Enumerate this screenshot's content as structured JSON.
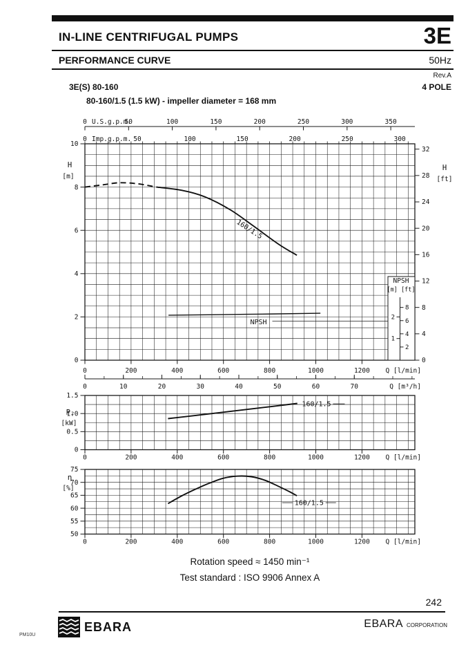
{
  "header": {
    "product_line": "IN-LINE CENTRIFUGAL PUMPS",
    "series": "3E",
    "doc_type": "PERFORMANCE CURVE",
    "frequency": "50Hz",
    "revision": "Rev.A",
    "model": "3E(S) 80-160",
    "poles": "4 POLE",
    "spec": "80-160/1.5 (1.5 kW) - impeller diameter = 168 mm"
  },
  "chart_data": {
    "type": "line",
    "flow_axis": {
      "unit_lmin": {
        "label": "Q [l/min]",
        "ticks": [
          0,
          200,
          400,
          600,
          800,
          1000,
          1200
        ],
        "minor_step": 50,
        "max": 1430
      },
      "unit_m3h": {
        "label": "Q [m³/h]",
        "ticks": [
          0,
          10,
          20,
          30,
          40,
          50,
          60,
          70
        ],
        "minor_step": 5,
        "lmin_per_unit": 16.667
      },
      "unit_usgpm": {
        "label": "U.S.g.p.m.",
        "ticks": [
          0,
          50,
          100,
          150,
          200,
          250,
          300,
          350
        ],
        "lmin_per_unit": 3.785
      },
      "unit_impgpm": {
        "label": "Imp.g.p.m.",
        "ticks": [
          0,
          50,
          100,
          150,
          200,
          250,
          300
        ],
        "lmin_per_unit": 4.546
      }
    },
    "head_chart": {
      "y_left": {
        "name": "H",
        "unit": "[m]",
        "ticks": [
          0,
          2,
          4,
          6,
          8,
          10
        ],
        "minor_step": 0.5,
        "range": [
          0,
          10
        ]
      },
      "y_right": {
        "name": "H",
        "unit": "[ft]",
        "ticks": [
          0,
          4,
          8,
          12,
          16,
          20,
          24,
          28,
          32
        ],
        "ft_per_m": 3.2808
      },
      "curve": {
        "label": "160/1.5",
        "dashed_points": [
          [
            0,
            8.0
          ],
          [
            75,
            8.1
          ],
          [
            150,
            8.2
          ],
          [
            230,
            8.15
          ],
          [
            310,
            8.0
          ]
        ],
        "solid_points": [
          [
            310,
            8.0
          ],
          [
            420,
            7.85
          ],
          [
            520,
            7.55
          ],
          [
            630,
            6.95
          ],
          [
            730,
            6.2
          ],
          [
            840,
            5.35
          ],
          [
            918,
            4.85
          ]
        ],
        "label_pos": {
          "q": 655,
          "v": 6.33,
          "angle": 33
        }
      },
      "npsh_curve": {
        "label": "NPSH",
        "points": [
          [
            362,
            2.08
          ],
          [
            700,
            2.12
          ],
          [
            1020,
            2.17
          ]
        ],
        "label_pos": {
          "q": 716,
          "v": 1.66
        },
        "leader_v": 1.8
      },
      "npsh_inset": {
        "title": "NPSH",
        "unit_m": "[m]",
        "unit_ft": "[ft]",
        "m_ticks": [
          1,
          2
        ],
        "ft_ticks": [
          2,
          4,
          6,
          8
        ]
      }
    },
    "power_chart": {
      "y_left": {
        "name": "P₂",
        "unit": "[kW]",
        "ticks": [
          "0",
          "0.5",
          "1.0",
          "1.5"
        ],
        "minor_step": 0.25,
        "range": [
          0,
          1.5
        ]
      },
      "curve": {
        "label": "160/1.5",
        "solid_points": [
          [
            360,
            0.86
          ],
          [
            550,
            1.0
          ],
          [
            750,
            1.15
          ],
          [
            920,
            1.28
          ]
        ],
        "label_pos": {
          "q": 940,
          "v": 1.2
        }
      }
    },
    "efficiency_chart": {
      "y_left": {
        "name": "η",
        "unit": "[%]",
        "ticks": [
          50,
          55,
          60,
          65,
          70,
          75
        ],
        "minor_step": 2.5,
        "range": [
          50,
          75
        ]
      },
      "curve": {
        "label": "160/1.5",
        "solid_points": [
          [
            360,
            61.8
          ],
          [
            420,
            64.8
          ],
          [
            480,
            67.4
          ],
          [
            540,
            69.7
          ],
          [
            600,
            71.6
          ],
          [
            660,
            72.4
          ],
          [
            720,
            72.2
          ],
          [
            780,
            70.8
          ],
          [
            840,
            68.4
          ],
          [
            890,
            66.2
          ],
          [
            918,
            64.8
          ]
        ],
        "label_pos": {
          "q": 908,
          "v": 61.2
        }
      }
    }
  },
  "footer": {
    "rotation_speed": "Rotation speed ≈ 1450 min⁻¹",
    "test_standard": "Test standard : ISO 9906 Annex A",
    "page_number": "242",
    "brand": "EBARA",
    "corporation_name": "EBARA",
    "corporation_suffix": "CORPORATION",
    "doc_code": "PM10U"
  }
}
